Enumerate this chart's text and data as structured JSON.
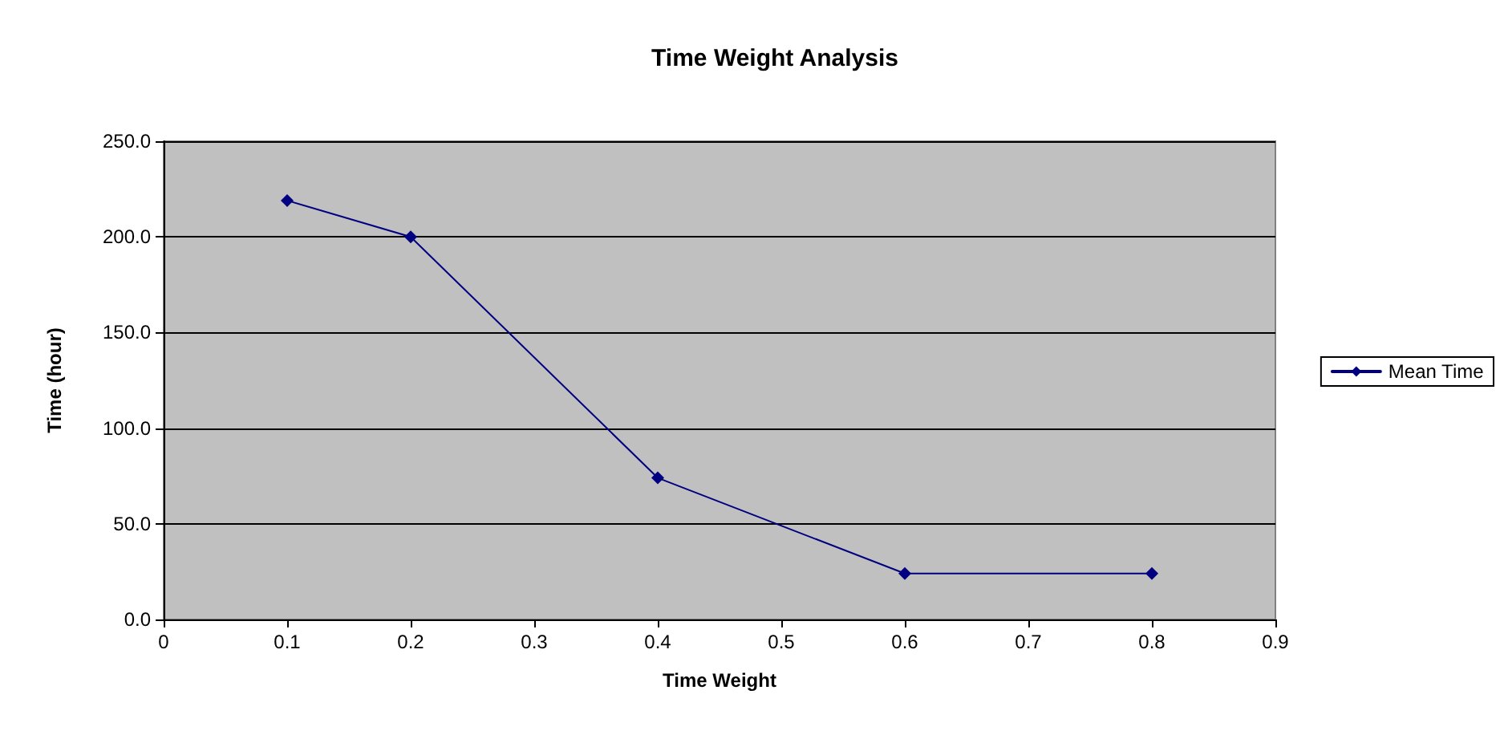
{
  "chart_data": {
    "type": "line",
    "title": "Time Weight Analysis",
    "xlabel": "Time Weight",
    "ylabel": "Time (hour)",
    "x": [
      0.1,
      0.2,
      0.4,
      0.6,
      0.8
    ],
    "series": [
      {
        "name": "Mean Time",
        "color": "#000080",
        "values": [
          219,
          200,
          74,
          24,
          24
        ]
      }
    ],
    "xlim": [
      0,
      0.9
    ],
    "xticks": [
      0,
      0.1,
      0.2,
      0.3,
      0.4,
      0.5,
      0.6,
      0.7,
      0.8,
      0.9
    ],
    "ylim": [
      0,
      250
    ],
    "yticks": [
      {
        "value": 0,
        "label": "0.0"
      },
      {
        "value": 50,
        "label": "50.0"
      },
      {
        "value": 100,
        "label": "100.0"
      },
      {
        "value": 150,
        "label": "150.0"
      },
      {
        "value": 200,
        "label": "200.0"
      },
      {
        "value": 250,
        "label": "250.0"
      }
    ],
    "grid": "y",
    "legend": "right",
    "marker": "diamond",
    "line_style": "solid"
  }
}
